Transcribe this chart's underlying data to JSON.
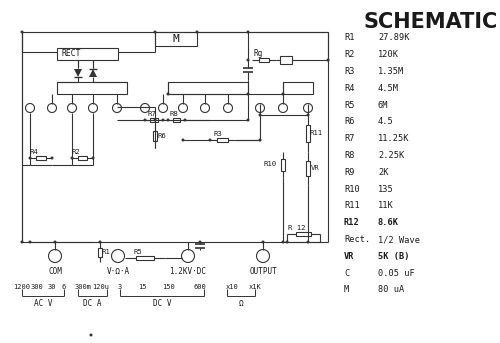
{
  "title": "SCHEMATIC",
  "bg_color": "#ffffff",
  "text_color": "#1a1a1a",
  "line_color": "#333333",
  "component_list": [
    [
      "R1",
      "27.89K"
    ],
    [
      "R2",
      "120K"
    ],
    [
      "R3",
      "1.35M"
    ],
    [
      "R4",
      "4.5M"
    ],
    [
      "R5",
      "6M"
    ],
    [
      "R6",
      "4.5"
    ],
    [
      "R7",
      "11.25K"
    ],
    [
      "R8",
      "2.25K"
    ],
    [
      "R9",
      "2K"
    ],
    [
      "R10",
      "135"
    ],
    [
      "R11",
      "11K"
    ],
    [
      "R12",
      "8.6K"
    ],
    [
      "Rect.",
      "1/2 Wave"
    ],
    [
      "VR",
      "5K (B)"
    ],
    [
      "C",
      "0.05 uF"
    ],
    [
      "M",
      "80 uA"
    ]
  ],
  "bottom_labels": [
    "1200",
    "300",
    "30",
    "6",
    "300m",
    "120u",
    "3",
    "15",
    "150",
    "600",
    "x10",
    "x1K"
  ],
  "terminal_labels": [
    "COM",
    "V·Ω·A",
    "1.2KV·DC",
    "OUTPUT"
  ],
  "ac_v_label": "AC V",
  "dc_a_label": "DC A",
  "dc_v_label": "DC V",
  "ohm_label": "Ω"
}
